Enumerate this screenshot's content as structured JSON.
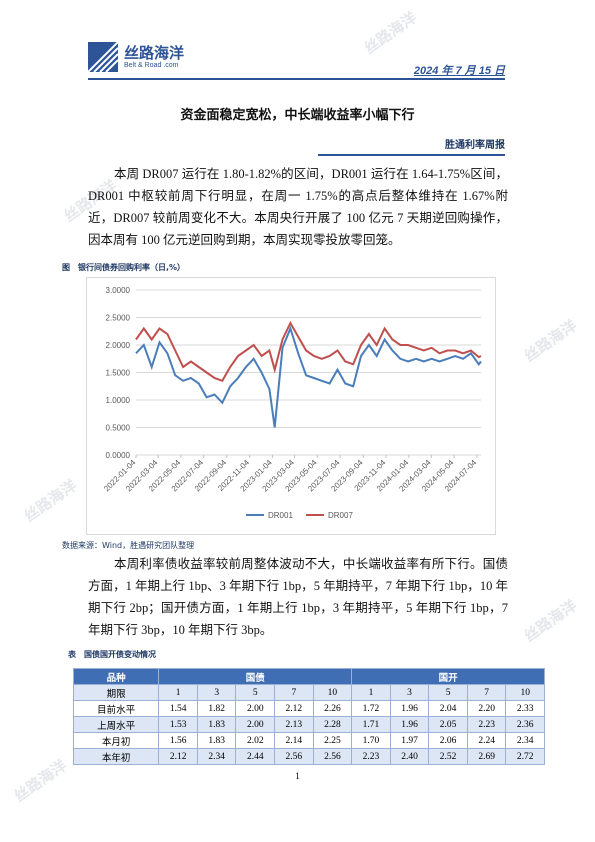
{
  "header": {
    "logo_name": "丝路海洋",
    "logo_sub": "Belt & Road .com",
    "date": "2024 年 7 月 15 日"
  },
  "watermark": "丝路海洋",
  "title": "资金面稳定宽松，中长端收益率小幅下行",
  "report_name": "胜通利率周报",
  "paragraph_1": "本周 DR007 运行在 1.80-1.82%的区间，DR001 运行在 1.64-1.75%区间，DR001 中枢较前周下行明显，在周一 1.75%的高点后整体维持在 1.67%附近，DR007 较前周变化不大。本周央行开展了 100 亿元 7 天期逆回购操作，因本周有 100 亿元逆回购到期，本周实现零投放零回笼。",
  "figure_caption": "图　银行间债券回购利率（日,%）",
  "chart_data": {
    "type": "line",
    "x": [
      "2022-01-04",
      "2022-01-25",
      "2022-02-15",
      "2022-03-08",
      "2022-03-29",
      "2022-04-19",
      "2022-05-10",
      "2022-05-31",
      "2022-06-21",
      "2022-07-12",
      "2022-08-02",
      "2022-08-23",
      "2022-09-13",
      "2022-10-04",
      "2022-10-25",
      "2022-11-15",
      "2022-12-06",
      "2022-12-27",
      "2023-01-10",
      "2023-01-31",
      "2023-02-21",
      "2023-03-14",
      "2023-04-04",
      "2023-04-25",
      "2023-05-16",
      "2023-06-06",
      "2023-06-27",
      "2023-07-18",
      "2023-08-08",
      "2023-08-29",
      "2023-09-19",
      "2023-10-10",
      "2023-10-31",
      "2023-11-21",
      "2023-12-12",
      "2024-01-02",
      "2024-01-23",
      "2024-02-13",
      "2024-03-05",
      "2024-03-26",
      "2024-04-16",
      "2024-05-07",
      "2024-05-28",
      "2024-06-18",
      "2024-07-09",
      "2024-07-15"
    ],
    "series": [
      {
        "name": "DR001",
        "color": "#4a7ebb",
        "values": [
          1.85,
          2.0,
          1.6,
          2.05,
          1.85,
          1.45,
          1.35,
          1.4,
          1.3,
          1.05,
          1.1,
          0.95,
          1.25,
          1.4,
          1.6,
          1.75,
          1.5,
          1.2,
          0.5,
          1.95,
          2.3,
          1.85,
          1.45,
          1.4,
          1.35,
          1.3,
          1.55,
          1.3,
          1.25,
          1.8,
          2.0,
          1.8,
          2.1,
          1.9,
          1.75,
          1.7,
          1.75,
          1.7,
          1.75,
          1.7,
          1.75,
          1.8,
          1.75,
          1.85,
          1.65,
          1.7
        ]
      },
      {
        "name": "DR007",
        "color": "#c0504d",
        "values": [
          2.1,
          2.3,
          2.1,
          2.3,
          2.2,
          1.9,
          1.6,
          1.7,
          1.6,
          1.5,
          1.4,
          1.35,
          1.6,
          1.8,
          1.9,
          2.0,
          1.8,
          1.9,
          1.55,
          2.1,
          2.4,
          2.15,
          1.9,
          1.8,
          1.75,
          1.8,
          1.9,
          1.7,
          1.65,
          2.0,
          2.2,
          2.0,
          2.3,
          2.1,
          2.0,
          2.0,
          1.95,
          1.9,
          1.95,
          1.85,
          1.9,
          1.9,
          1.85,
          1.9,
          1.78,
          1.8
        ]
      }
    ],
    "xlim": [
      "2022-01-04",
      "2024-07-15"
    ],
    "xticks": [
      "2022-01-04",
      "2022-03-04",
      "2022-05-04",
      "2022-07-04",
      "2022-09-04",
      "2022-11-04",
      "2023-01-04",
      "2023-03-04",
      "2023-05-04",
      "2023-07-04",
      "2023-09-04",
      "2023-11-04",
      "2024-01-04",
      "2024-03-04",
      "2024-05-04",
      "2024-07-04"
    ],
    "ylim": [
      0,
      3
    ],
    "yticks": [
      {
        "value": 0,
        "label": "0.0000"
      },
      {
        "value": 0.5,
        "label": "0.5000"
      },
      {
        "value": 1,
        "label": "1.0000"
      },
      {
        "value": 1.5,
        "label": "1.5000"
      },
      {
        "value": 2,
        "label": "2.0000"
      },
      {
        "value": 2.5,
        "label": "2.5000"
      },
      {
        "value": 3,
        "label": "3.0000"
      }
    ],
    "grid": true,
    "legend": "bottom"
  },
  "source": "数据来源：Wind，胜遇研究团队整理",
  "paragraph_2": "本周利率债收益率较前周整体波动不大，中长端收益率有所下行。国债方面，1 年期上行 1bp、3 年期下行 1bp，5 年期持平，7 年期下行 1bp，10 年期下行 2bp；国开债方面，1 年期上行 1bp，3 年期持平，5 年期下行 1bp，7 年期下行 3bp，10 年期下行 3bp。",
  "table_caption": "表　国债国开债变动情况",
  "table": {
    "header": [
      "品种",
      "国债",
      "国开"
    ],
    "rows": [
      [
        "期限",
        "1",
        "3",
        "5",
        "7",
        "10",
        "1",
        "3",
        "5",
        "7",
        "10"
      ],
      [
        "目前水平",
        "1.54",
        "1.82",
        "2.00",
        "2.12",
        "2.26",
        "1.72",
        "1.96",
        "2.04",
        "2.20",
        "2.33"
      ],
      [
        "上周水平",
        "1.53",
        "1.83",
        "2.00",
        "2.13",
        "2.28",
        "1.71",
        "1.96",
        "2.05",
        "2.23",
        "2.36"
      ],
      [
        "本月初",
        "1.56",
        "1.83",
        "2.02",
        "2.14",
        "2.25",
        "1.70",
        "1.97",
        "2.06",
        "2.24",
        "2.34"
      ],
      [
        "本年初",
        "2.12",
        "2.34",
        "2.44",
        "2.56",
        "2.56",
        "2.23",
        "2.40",
        "2.52",
        "2.69",
        "2.72"
      ]
    ]
  },
  "page_number": "1"
}
